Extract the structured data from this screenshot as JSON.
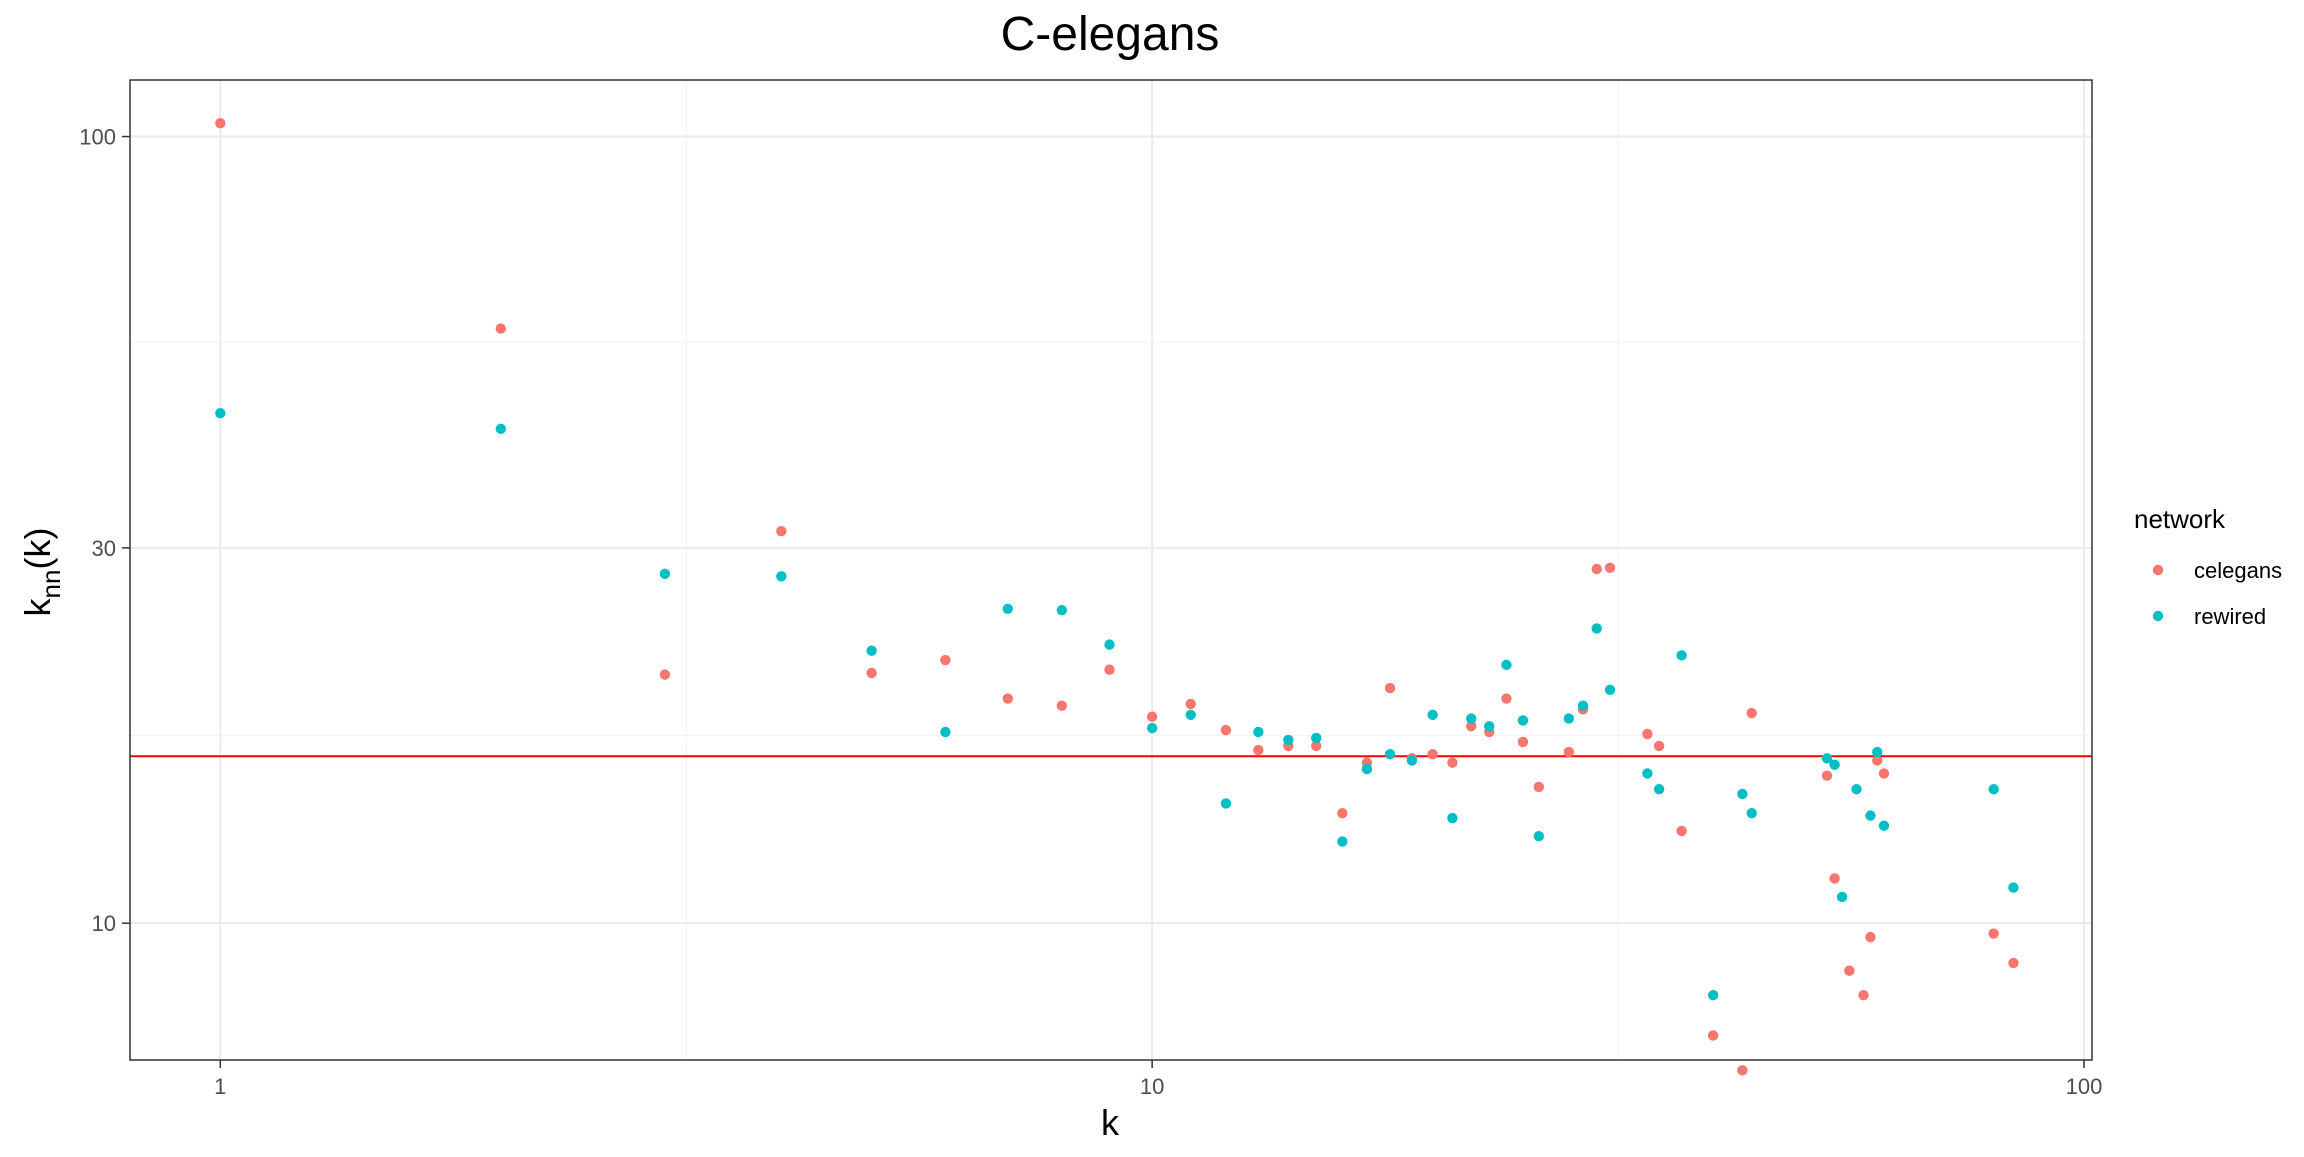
{
  "chart_data": {
    "type": "scatter",
    "title": "C-elegans",
    "xlabel": "k",
    "ylabel": "k_nn(k)",
    "ylabel_main": "k",
    "ylabel_sub": "nn",
    "ylabel_paren": "(k)",
    "x_scale": "log10",
    "y_scale": "log10",
    "xlim": [
      0.8,
      102
    ],
    "ylim": [
      6.7,
      118
    ],
    "x_ticks": [
      1,
      10,
      100
    ],
    "x_tick_labels": [
      "1",
      "10",
      "100"
    ],
    "y_ticks": [
      10,
      30,
      100
    ],
    "y_tick_labels": [
      "10",
      "30",
      "100"
    ],
    "grid": true,
    "legend_position": "right",
    "legend_title": "network",
    "reference_line": {
      "y": 16.3,
      "color": "#ff0000"
    },
    "series": [
      {
        "name": "celegans",
        "color": "#f8766d",
        "points": [
          [
            1,
            104
          ],
          [
            2,
            57
          ],
          [
            3,
            20.7
          ],
          [
            4,
            31.5
          ],
          [
            5,
            20.8
          ],
          [
            6,
            21.6
          ],
          [
            7,
            19.3
          ],
          [
            8,
            18.9
          ],
          [
            9,
            21
          ],
          [
            10,
            18.3
          ],
          [
            11,
            19
          ],
          [
            12,
            17.6
          ],
          [
            13,
            16.6
          ],
          [
            14,
            16.8
          ],
          [
            15,
            16.8
          ],
          [
            16,
            13.8
          ],
          [
            17,
            16
          ],
          [
            18,
            19.9
          ],
          [
            19,
            16.2
          ],
          [
            20,
            16.4
          ],
          [
            21,
            16
          ],
          [
            22,
            17.8
          ],
          [
            23,
            17.5
          ],
          [
            24,
            19.3
          ],
          [
            25,
            17
          ],
          [
            26,
            14.9
          ],
          [
            28,
            16.5
          ],
          [
            29,
            18.7
          ],
          [
            30,
            28.2
          ],
          [
            31,
            28.3
          ],
          [
            34,
            17.4
          ],
          [
            35,
            16.8
          ],
          [
            37,
            13.1
          ],
          [
            40,
            7.2
          ],
          [
            43,
            6.5
          ],
          [
            44,
            18.5
          ],
          [
            53,
            15.4
          ],
          [
            54,
            11.4
          ],
          [
            56,
            8.7
          ],
          [
            58,
            8.1
          ],
          [
            59,
            9.6
          ],
          [
            60,
            16.1
          ],
          [
            61,
            15.5
          ],
          [
            80,
            9.7
          ],
          [
            84,
            8.9
          ]
        ]
      },
      {
        "name": "rewired",
        "color": "#00bfc4",
        "points": [
          [
            1,
            44.5
          ],
          [
            2,
            42.5
          ],
          [
            3,
            27.8
          ],
          [
            4,
            27.6
          ],
          [
            5,
            22.2
          ],
          [
            6,
            17.5
          ],
          [
            7,
            25.1
          ],
          [
            8,
            25
          ],
          [
            9,
            22.6
          ],
          [
            10,
            17.7
          ],
          [
            11,
            18.4
          ],
          [
            12,
            14.2
          ],
          [
            13,
            17.5
          ],
          [
            14,
            17.1
          ],
          [
            15,
            17.2
          ],
          [
            16,
            12.7
          ],
          [
            17,
            15.7
          ],
          [
            18,
            16.4
          ],
          [
            19,
            16.1
          ],
          [
            20,
            18.4
          ],
          [
            21,
            13.6
          ],
          [
            22,
            18.2
          ],
          [
            23,
            17.8
          ],
          [
            24,
            21.3
          ],
          [
            25,
            18.1
          ],
          [
            26,
            12.9
          ],
          [
            28,
            18.2
          ],
          [
            29,
            18.9
          ],
          [
            30,
            23.7
          ],
          [
            31,
            19.8
          ],
          [
            34,
            15.5
          ],
          [
            35,
            14.8
          ],
          [
            37,
            21.9
          ],
          [
            40,
            8.1
          ],
          [
            43,
            14.6
          ],
          [
            44,
            13.8
          ],
          [
            53,
            16.2
          ],
          [
            54,
            15.9
          ],
          [
            55,
            10.8
          ],
          [
            57,
            14.8
          ],
          [
            59,
            13.7
          ],
          [
            60,
            16.5
          ],
          [
            61,
            13.3
          ],
          [
            80,
            14.8
          ],
          [
            84,
            11.1
          ]
        ]
      }
    ]
  }
}
